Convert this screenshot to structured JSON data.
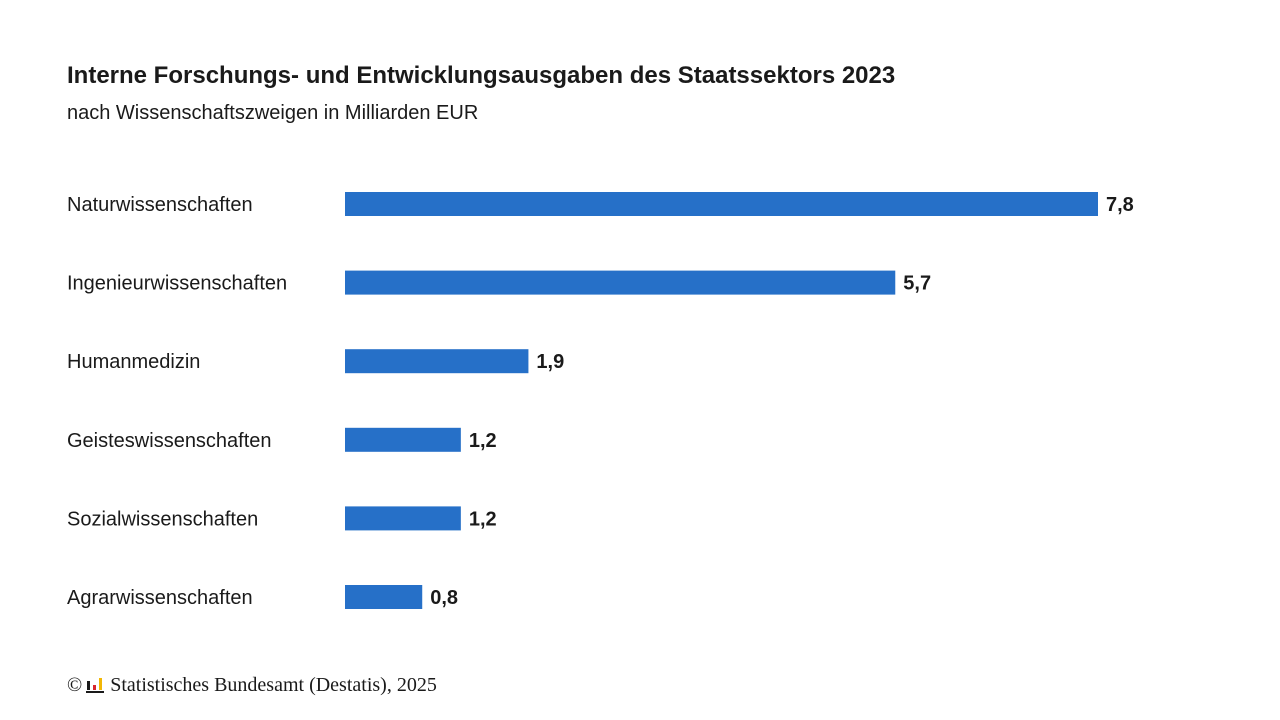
{
  "chart_data": {
    "type": "bar",
    "orientation": "horizontal",
    "title": "Interne Forschungs- und Entwicklungsausgaben des Staatssektors 2023",
    "subtitle": "nach Wissenschaftszweigen in Milliarden EUR",
    "categories": [
      "Naturwissenschaften",
      "Ingenieurwissenschaften",
      "Humanmedizin",
      "Geisteswissenschaften",
      "Sozialwissenschaften",
      "Agrarwissenschaften"
    ],
    "values": [
      7.8,
      5.7,
      1.9,
      1.2,
      1.2,
      0.8
    ],
    "value_labels": [
      "7,8",
      "5,7",
      "1,9",
      "1,2",
      "1,2",
      "0,8"
    ],
    "xlim": [
      0,
      7.8
    ],
    "grid": false,
    "legend": "none",
    "bar_color": "#2670c8"
  },
  "footer": {
    "copyright_symbol": "©",
    "source": "Statistisches Bundesamt (Destatis), 2025",
    "logo_icon": "destatis-logo-icon"
  }
}
